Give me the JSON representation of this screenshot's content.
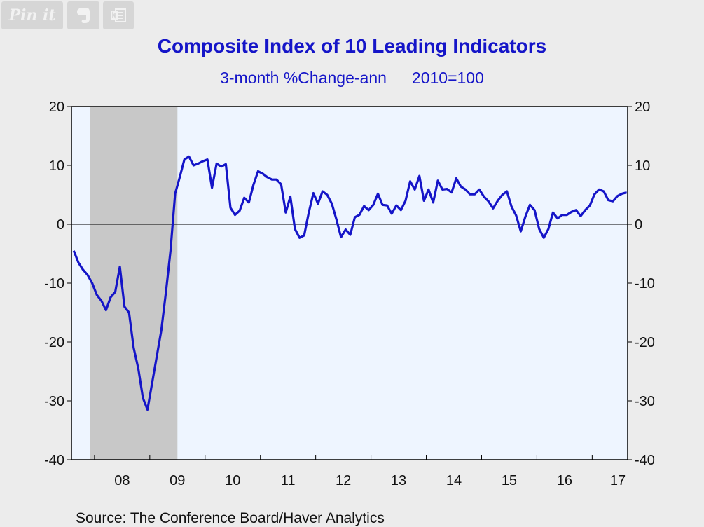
{
  "share": {
    "pin_label": "Pin it",
    "evernote_icon": "evernote-icon",
    "onenote_icon": "onenote-icon"
  },
  "colors": {
    "line": "#1515c8",
    "recession": "#c8c8c8",
    "plot_bg": "#eef5ff",
    "title": "#1515c8"
  },
  "chart_data": {
    "type": "line",
    "title": "Composite Index of 10 Leading Indicators",
    "subtitle": [
      "3-month %Change-ann",
      "2010=100"
    ],
    "xlabel": "",
    "ylabel": "",
    "ylim": [
      -40,
      20
    ],
    "yticks": [
      20,
      10,
      0,
      -10,
      -20,
      -30,
      -40
    ],
    "xtick_labels": [
      "08",
      "09",
      "10",
      "11",
      "12",
      "13",
      "14",
      "15",
      "16",
      "17"
    ],
    "x_range": [
      "2007-08",
      "2017-06"
    ],
    "grid": false,
    "zero_line": true,
    "recession": {
      "start": "2007-12",
      "end": "2009-06"
    },
    "series": [
      {
        "values": [
          [
            "2007-08",
            -4.5
          ],
          [
            "2007-09",
            -6.5
          ],
          [
            "2007-10",
            -7.7
          ],
          [
            "2007-11",
            -8.6
          ],
          [
            "2007-12",
            -10.0
          ],
          [
            "2008-01",
            -12.0
          ],
          [
            "2008-02",
            -13.0
          ],
          [
            "2008-03",
            -14.6
          ],
          [
            "2008-04",
            -12.4
          ],
          [
            "2008-05",
            -11.5
          ],
          [
            "2008-06",
            -7.2
          ],
          [
            "2008-07",
            -14.0
          ],
          [
            "2008-08",
            -15.0
          ],
          [
            "2008-09",
            -21.0
          ],
          [
            "2008-10",
            -24.5
          ],
          [
            "2008-11",
            -29.5
          ],
          [
            "2008-12",
            -31.5
          ],
          [
            "2009-01",
            -27.0
          ],
          [
            "2009-02",
            -22.5
          ],
          [
            "2009-03",
            -18.0
          ],
          [
            "2009-04",
            -11.5
          ],
          [
            "2009-05",
            -4.5
          ],
          [
            "2009-06",
            5.2
          ],
          [
            "2009-07",
            8.0
          ],
          [
            "2009-08",
            11.0
          ],
          [
            "2009-09",
            11.5
          ],
          [
            "2009-10",
            10.0
          ],
          [
            "2009-11",
            10.3
          ],
          [
            "2009-12",
            10.7
          ],
          [
            "2010-01",
            11.0
          ],
          [
            "2010-02",
            6.2
          ],
          [
            "2010-03",
            10.3
          ],
          [
            "2010-04",
            9.8
          ],
          [
            "2010-05",
            10.2
          ],
          [
            "2010-06",
            2.8
          ],
          [
            "2010-07",
            1.6
          ],
          [
            "2010-08",
            2.3
          ],
          [
            "2010-09",
            4.5
          ],
          [
            "2010-10",
            3.7
          ],
          [
            "2010-11",
            6.7
          ],
          [
            "2010-12",
            9.0
          ],
          [
            "2011-01",
            8.6
          ],
          [
            "2011-02",
            8.0
          ],
          [
            "2011-03",
            7.6
          ],
          [
            "2011-04",
            7.6
          ],
          [
            "2011-05",
            6.8
          ],
          [
            "2011-06",
            2.0
          ],
          [
            "2011-07",
            4.7
          ],
          [
            "2011-08",
            -0.8
          ],
          [
            "2011-09",
            -2.3
          ],
          [
            "2011-10",
            -1.9
          ],
          [
            "2011-11",
            2.0
          ],
          [
            "2011-12",
            5.3
          ],
          [
            "2012-01",
            3.5
          ],
          [
            "2012-02",
            5.6
          ],
          [
            "2012-03",
            5.0
          ],
          [
            "2012-04",
            3.5
          ],
          [
            "2012-05",
            0.8
          ],
          [
            "2012-06",
            -2.2
          ],
          [
            "2012-07",
            -0.9
          ],
          [
            "2012-08",
            -1.8
          ],
          [
            "2012-09",
            1.2
          ],
          [
            "2012-10",
            1.6
          ],
          [
            "2012-11",
            3.1
          ],
          [
            "2012-12",
            2.4
          ],
          [
            "2013-01",
            3.3
          ],
          [
            "2013-02",
            5.2
          ],
          [
            "2013-03",
            3.3
          ],
          [
            "2013-04",
            3.2
          ],
          [
            "2013-05",
            1.8
          ],
          [
            "2013-06",
            3.2
          ],
          [
            "2013-07",
            2.4
          ],
          [
            "2013-08",
            4.0
          ],
          [
            "2013-09",
            7.3
          ],
          [
            "2013-10",
            5.9
          ],
          [
            "2013-11",
            8.2
          ],
          [
            "2013-12",
            4.0
          ],
          [
            "2014-01",
            5.9
          ],
          [
            "2014-02",
            3.7
          ],
          [
            "2014-03",
            7.4
          ],
          [
            "2014-04",
            5.9
          ],
          [
            "2014-05",
            6.0
          ],
          [
            "2014-06",
            5.4
          ],
          [
            "2014-07",
            7.8
          ],
          [
            "2014-08",
            6.4
          ],
          [
            "2014-09",
            5.9
          ],
          [
            "2014-10",
            5.1
          ],
          [
            "2014-11",
            5.1
          ],
          [
            "2014-12",
            5.9
          ],
          [
            "2015-01",
            4.7
          ],
          [
            "2015-02",
            3.9
          ],
          [
            "2015-03",
            2.7
          ],
          [
            "2015-04",
            4.0
          ],
          [
            "2015-05",
            5.0
          ],
          [
            "2015-06",
            5.6
          ],
          [
            "2015-07",
            3.0
          ],
          [
            "2015-08",
            1.5
          ],
          [
            "2015-09",
            -1.2
          ],
          [
            "2015-10",
            1.3
          ],
          [
            "2015-11",
            3.3
          ],
          [
            "2015-12",
            2.4
          ],
          [
            "2016-01",
            -0.8
          ],
          [
            "2016-02",
            -2.3
          ],
          [
            "2016-03",
            -0.8
          ],
          [
            "2016-04",
            2.0
          ],
          [
            "2016-05",
            1.0
          ],
          [
            "2016-06",
            1.6
          ],
          [
            "2016-07",
            1.6
          ],
          [
            "2016-08",
            2.1
          ],
          [
            "2016-09",
            2.4
          ],
          [
            "2016-10",
            1.4
          ],
          [
            "2016-11",
            2.4
          ],
          [
            "2016-12",
            3.2
          ],
          [
            "2017-01",
            5.1
          ],
          [
            "2017-02",
            5.9
          ],
          [
            "2017-03",
            5.6
          ],
          [
            "2017-04",
            4.1
          ],
          [
            "2017-05",
            3.9
          ],
          [
            "2017-06",
            4.8
          ],
          [
            "2017-07",
            5.2
          ],
          [
            "2017-08",
            5.4
          ]
        ]
      }
    ],
    "source": "Source:  The Conference Board/Haver Analytics"
  }
}
